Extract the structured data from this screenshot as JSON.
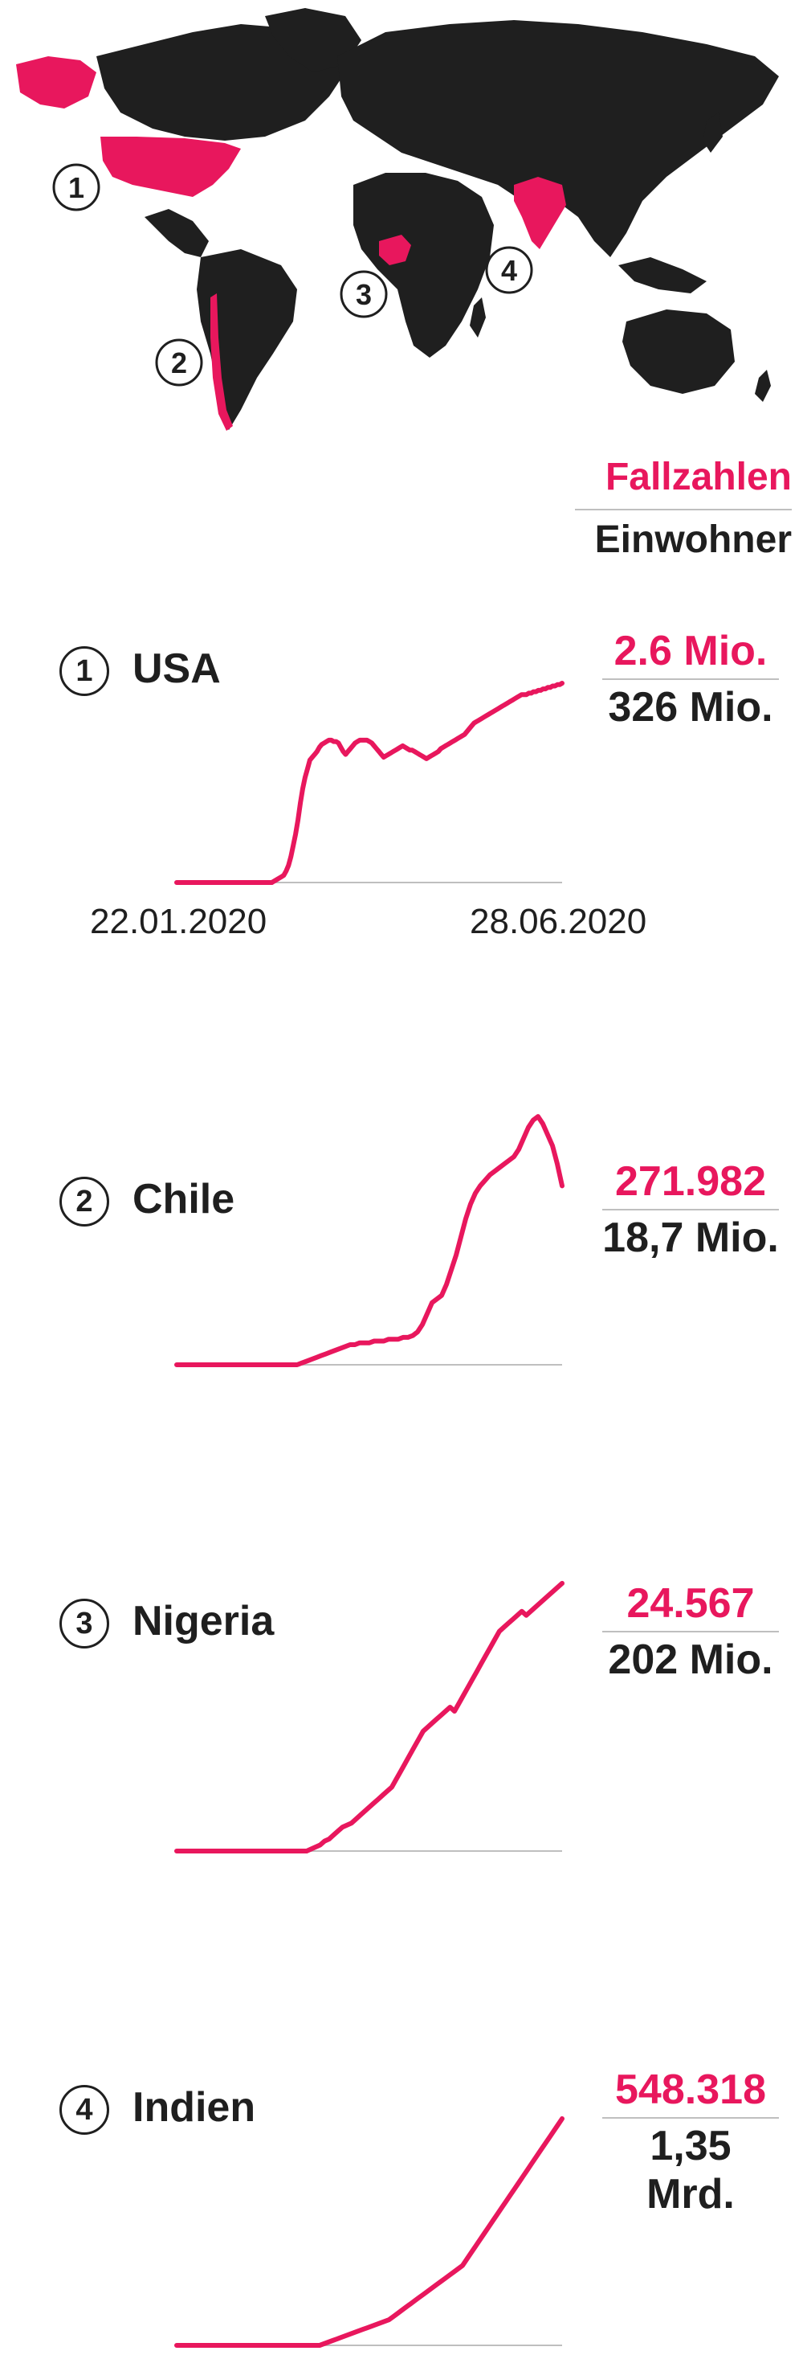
{
  "legend": {
    "cases_label": "Fallzahlen",
    "population_label": "Einwohner"
  },
  "colors": {
    "highlight": "#e8175d",
    "land": "#1f1f1f",
    "baseline": "#bfbfbf"
  },
  "map_markers": [
    "1",
    "2",
    "3",
    "4"
  ],
  "countries": [
    {
      "number": "1",
      "name": "USA",
      "cases": "2.6 Mio.",
      "population": "326 Mio.",
      "start_date": "22.01.2020",
      "end_date": "28.06.2020"
    },
    {
      "number": "2",
      "name": "Chile",
      "cases": "271.982",
      "population": "18,7 Mio."
    },
    {
      "number": "3",
      "name": "Nigeria",
      "cases": "24.567",
      "population": "202 Mio."
    },
    {
      "number": "4",
      "name": "Indien",
      "cases": "548.318",
      "population": "1,35 Mrd."
    }
  ],
  "chart_data": [
    {
      "type": "line",
      "title": "USA",
      "x_start": "22.01.2020",
      "x_end": "28.06.2020",
      "series": [
        {
          "values": [
            0,
            0,
            0,
            0,
            0,
            0,
            0,
            0,
            0,
            0,
            0,
            0,
            0,
            0,
            0,
            0,
            0,
            0,
            0,
            0,
            0,
            0,
            0,
            0,
            0,
            0,
            0,
            0,
            0,
            0,
            0,
            0,
            0,
            0,
            0,
            0,
            0,
            0,
            0,
            0,
            0,
            1,
            2,
            3,
            4,
            5,
            8,
            12,
            18,
            26,
            34,
            44,
            56,
            66,
            74,
            80,
            86,
            88,
            90,
            92,
            95,
            97,
            98,
            99,
            100,
            100,
            99,
            99,
            98,
            95,
            92,
            90,
            92,
            94,
            96,
            98,
            99,
            100,
            100,
            100,
            100,
            99,
            98,
            96,
            94,
            92,
            90,
            88,
            89,
            90,
            91,
            92,
            93,
            94,
            95,
            96,
            95,
            94,
            93,
            93,
            92,
            91,
            90,
            89,
            88,
            87,
            88,
            89,
            90,
            91,
            92,
            94,
            95,
            96,
            97,
            98,
            99,
            100,
            101,
            102,
            103,
            104,
            106,
            108,
            110,
            112,
            113,
            114,
            115,
            116,
            117,
            118,
            119,
            120,
            121,
            122,
            123,
            124,
            125,
            126,
            127,
            128,
            129,
            130,
            131,
            132,
            132,
            132,
            133,
            133,
            134,
            134,
            135,
            135,
            136,
            136,
            137,
            137,
            138,
            138,
            139,
            139,
            140
          ]
        }
      ]
    },
    {
      "type": "line",
      "title": "Chile",
      "series": [
        {
          "values": [
            0,
            0,
            0,
            0,
            0,
            0,
            0,
            0,
            0,
            0,
            0,
            0,
            0,
            0,
            0,
            0,
            0,
            0,
            0,
            0,
            0,
            0,
            0,
            0,
            0,
            0,
            1,
            2,
            3,
            4,
            5,
            6,
            7,
            8,
            9,
            10,
            11,
            11,
            12,
            12,
            12,
            13,
            13,
            13,
            14,
            14,
            14,
            15,
            15,
            16,
            18,
            22,
            28,
            34,
            36,
            38,
            44,
            52,
            60,
            70,
            80,
            88,
            94,
            98,
            101,
            104,
            106,
            108,
            110,
            112,
            114,
            118,
            124,
            130,
            134,
            136,
            132,
            126,
            120,
            110,
            98
          ]
        }
      ]
    },
    {
      "type": "line",
      "title": "Nigeria",
      "series": [
        {
          "values": [
            0,
            0,
            0,
            0,
            0,
            0,
            0,
            0,
            0,
            0,
            0,
            0,
            0,
            0,
            0,
            0,
            0,
            0,
            0,
            0,
            0,
            0,
            0,
            0,
            0,
            0,
            0,
            0,
            0,
            0,
            1,
            2,
            3,
            5,
            6,
            8,
            10,
            12,
            13,
            14,
            16,
            18,
            20,
            22,
            24,
            26,
            28,
            30,
            32,
            36,
            40,
            44,
            48,
            52,
            56,
            60,
            62,
            64,
            66,
            68,
            70,
            72,
            70,
            74,
            78,
            82,
            86,
            90,
            94,
            98,
            102,
            106,
            110,
            112,
            114,
            116,
            118,
            120,
            118,
            120,
            122,
            124,
            126,
            128,
            130,
            132,
            134
          ]
        }
      ]
    },
    {
      "type": "line",
      "title": "Indien",
      "series": [
        {
          "values": [
            0,
            0,
            0,
            0,
            0,
            0,
            0,
            0,
            0,
            0,
            0,
            0,
            0,
            0,
            0,
            0,
            0,
            0,
            0,
            0,
            0,
            0,
            0,
            0,
            0,
            0,
            0,
            0,
            0,
            0,
            0,
            0,
            0,
            0,
            1,
            2,
            3,
            4,
            5,
            6,
            7,
            8,
            9,
            10,
            11,
            12,
            13,
            14,
            15,
            16,
            18,
            20,
            22,
            24,
            26,
            28,
            30,
            32,
            34,
            36,
            38,
            40,
            42,
            44,
            46,
            48,
            50,
            54,
            58,
            62,
            66,
            70,
            74,
            78,
            82,
            86,
            90,
            94,
            98,
            102,
            106,
            110,
            114,
            118,
            122,
            126,
            130,
            134,
            138,
            142
          ]
        }
      ]
    }
  ]
}
